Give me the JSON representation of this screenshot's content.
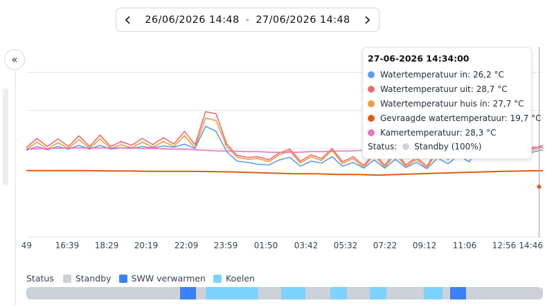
{
  "date_range": {
    "start": "26/06/2026 14:48",
    "separator": "-",
    "end": "27/06/2026 14:48"
  },
  "colors": {
    "water_in": "#5b9cf2",
    "water_out": "#ee6a6e",
    "water_house_in": "#f59a38",
    "requested": "#e25a11",
    "room": "#eb73be",
    "standby": "#cdd1d8",
    "sww": "#3b82f6",
    "cooling": "#7dd3fc"
  },
  "chart_data": {
    "type": "line",
    "title": "",
    "xlabel": "",
    "ylabel": "",
    "x_ticks": [
      "49",
      "16:39",
      "18:29",
      "20:19",
      "22:09",
      "23:59",
      "01:50",
      "03:42",
      "05:32",
      "07:22",
      "09:12",
      "11:06",
      "12:56",
      "14:46"
    ],
    "grid": true,
    "legend": "none",
    "series": [
      {
        "name": "Watertemperatuur uit",
        "values": [
          26.1,
          27.6,
          26.3,
          27.5,
          26.3,
          28.0,
          26.3,
          28.1,
          26.3,
          27.1,
          26.5,
          27.6,
          26.6,
          27.7,
          26.7,
          28.7,
          26.6,
          31.8,
          31.5,
          26.7,
          24.9,
          24.6,
          24.7,
          24.2,
          25.3,
          25.9,
          24.0,
          25.0,
          24.4,
          26.0,
          23.9,
          24.7,
          23.3,
          25.3,
          23.3,
          25.6,
          23.4,
          24.6,
          23.2,
          25.9,
          24.5,
          26.4,
          24.7,
          28.9,
          25.8,
          27.8,
          26.0,
          27.3,
          26.0,
          26.5
        ]
      },
      {
        "name": "Watertemperatuur huis in",
        "values": [
          25.8,
          27.0,
          25.9,
          26.9,
          26.0,
          27.4,
          26.0,
          27.5,
          26.0,
          26.6,
          26.1,
          27.0,
          26.2,
          27.1,
          26.3,
          28.0,
          26.1,
          30.8,
          30.4,
          26.3,
          24.6,
          24.3,
          24.4,
          23.9,
          25.0,
          25.6,
          23.7,
          24.7,
          24.1,
          25.7,
          23.6,
          24.4,
          23.0,
          25.0,
          23.0,
          25.2,
          23.1,
          24.3,
          22.9,
          25.6,
          24.2,
          26.0,
          24.4,
          27.7,
          25.5,
          27.3,
          25.7,
          26.9,
          25.7,
          26.2
        ]
      },
      {
        "name": "Watertemperatuur in",
        "values": [
          25.7,
          26.3,
          25.8,
          26.3,
          25.9,
          26.5,
          25.9,
          26.5,
          25.9,
          26.1,
          26.0,
          26.3,
          26.1,
          26.4,
          26.2,
          26.7,
          26.0,
          29.5,
          28.7,
          25.5,
          24.0,
          23.8,
          23.5,
          23.4,
          24.2,
          24.6,
          23.2,
          24.0,
          23.7,
          24.7,
          23.2,
          23.8,
          22.9,
          24.2,
          22.9,
          24.3,
          23.0,
          23.8,
          22.8,
          24.5,
          23.6,
          24.9,
          23.9,
          26.2,
          25.1,
          26.1,
          25.3,
          26.0,
          25.4,
          25.8
        ]
      },
      {
        "name": "Kamertemperatuur",
        "values": [
          25.9,
          25.95,
          26.0,
          26.05,
          26.1,
          26.1,
          26.1,
          26.1,
          26.1,
          26.0,
          26.0,
          25.9,
          25.9,
          25.8,
          25.7,
          25.6,
          25.6,
          25.5,
          25.5,
          25.4,
          25.4,
          25.4,
          25.5,
          25.5,
          25.6,
          25.6,
          25.7,
          25.7,
          25.8,
          25.9,
          25.9,
          26.0,
          26.0,
          26.0,
          26.1,
          26.1,
          26.1,
          26.1,
          26.2,
          26.2,
          26.2
        ]
      },
      {
        "name": "Gevraagde watertemperatuur",
        "values": [
          22.5,
          22.5,
          22.5,
          22.5,
          22.45,
          22.45,
          22.4,
          22.4,
          22.4,
          22.35,
          22.3,
          22.2,
          22.1,
          22.0,
          22.0,
          21.9,
          21.9,
          21.8,
          21.9,
          22.0,
          22.1,
          22.2,
          22.3,
          22.4,
          22.45,
          22.5
        ]
      }
    ]
  },
  "tooltip": {
    "title": "27-06-2026 14:34:00",
    "rows": [
      {
        "label": "Watertemperatuur in: 26,2 °C",
        "color": "#5b9cf2"
      },
      {
        "label": "Watertemperatuur uit: 28,7 °C",
        "color": "#ee6a6e"
      },
      {
        "label": "Watertemperatuur huis in: 27,7 °C",
        "color": "#f59a38"
      },
      {
        "label": "Gevraagde watertemperatuur: 19,7 °C",
        "color": "#e25a11"
      },
      {
        "label": "Kamertemperatuur: 28,3 °C",
        "color": "#eb73be"
      }
    ],
    "status_label": "Status:",
    "status_value": "Standby (100%)"
  },
  "status_legend": {
    "title": "Status",
    "items": [
      {
        "label": "Standby",
        "color": "#cdd1d8"
      },
      {
        "label": "SWW verwarmen",
        "color": "#3b82f6"
      },
      {
        "label": "Koelen",
        "color": "#7dd3fc"
      }
    ]
  },
  "status_bar": {
    "segments": [
      {
        "state": "SWW verwarmen",
        "start": 0.298,
        "end": 0.328
      },
      {
        "state": "Koelen",
        "start": 0.347,
        "end": 0.449
      },
      {
        "state": "Koelen",
        "start": 0.493,
        "end": 0.54
      },
      {
        "state": "Koelen",
        "start": 0.588,
        "end": 0.62
      },
      {
        "state": "Koelen",
        "start": 0.665,
        "end": 0.697
      },
      {
        "state": "Koelen",
        "start": 0.769,
        "end": 0.805
      },
      {
        "state": "SWW verwarmen",
        "start": 0.821,
        "end": 0.851
      }
    ]
  },
  "icons": {
    "prev": "chevron-left-icon",
    "next": "chevron-right-icon",
    "collapse": "double-chevron-left-icon"
  }
}
